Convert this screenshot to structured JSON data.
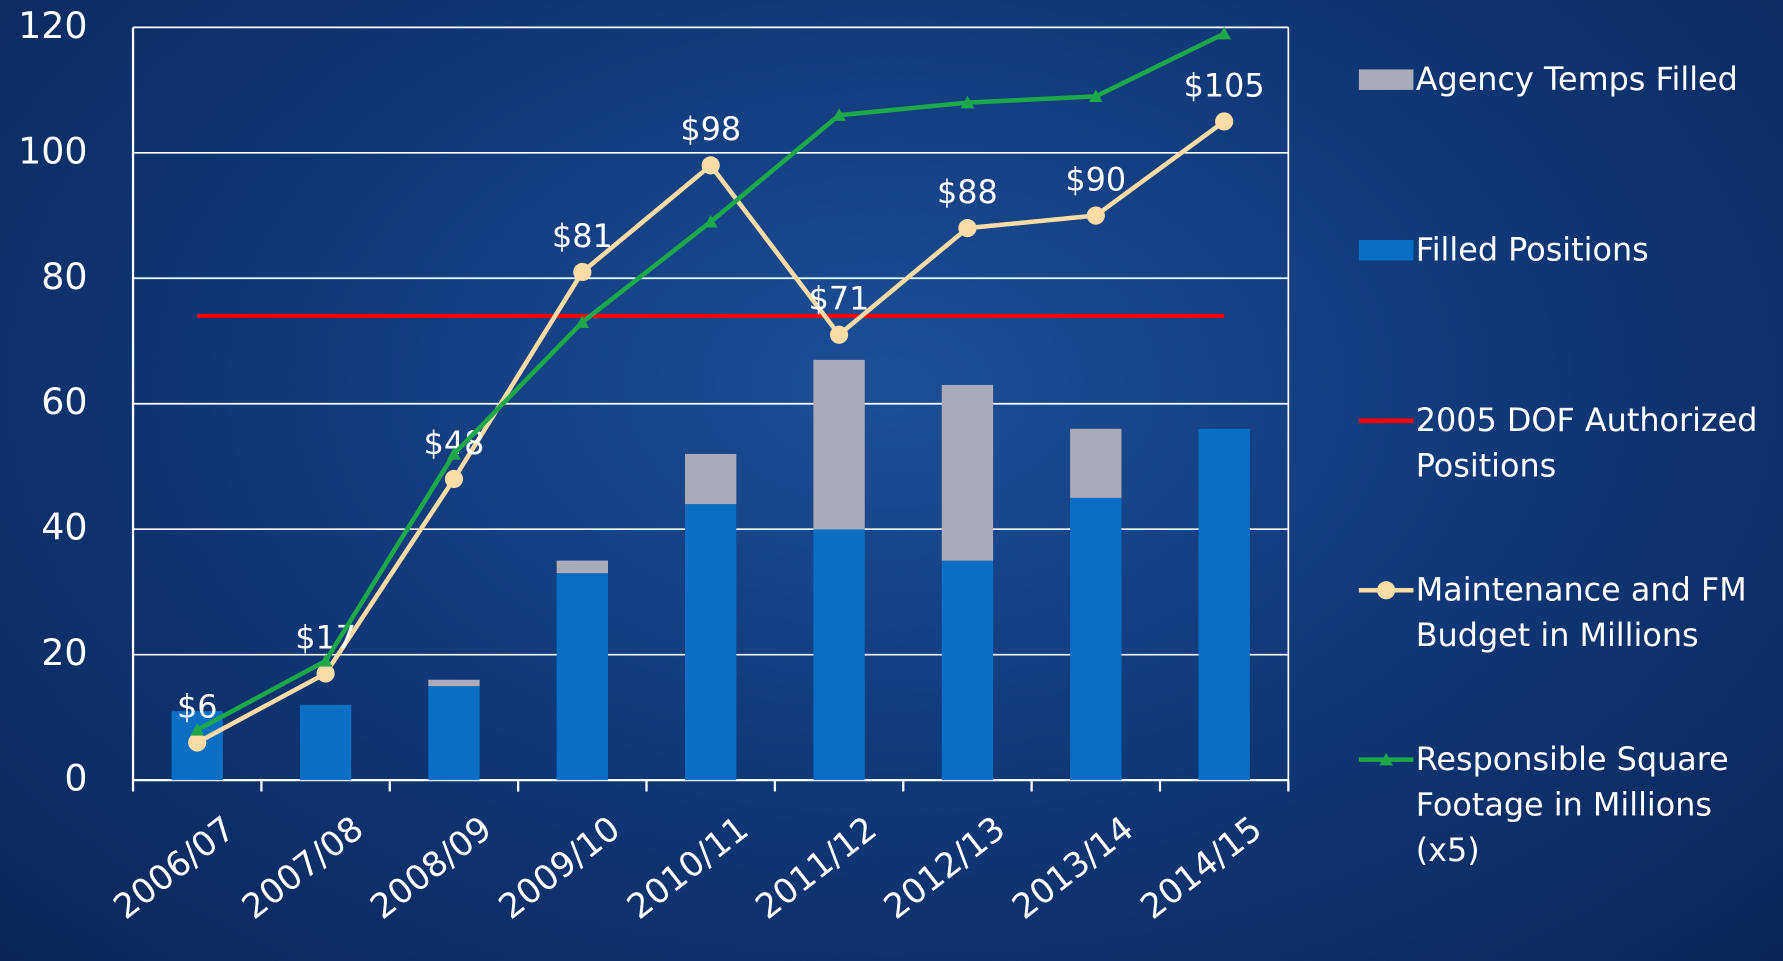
{
  "chart_data": {
    "type": "bar",
    "categories": [
      "2006/07",
      "2007/08",
      "2008/09",
      "2009/10",
      "2010/11",
      "2011/12",
      "2012/13",
      "2013/14",
      "2014/15"
    ],
    "ylim": [
      0,
      120
    ],
    "yticks": [
      0,
      20,
      40,
      60,
      80,
      100,
      120
    ],
    "grid": true,
    "legend": "right",
    "series": [
      {
        "name": "Agency Temps Filled",
        "type": "bar",
        "stack": "top",
        "color": "#a9abb8",
        "values": [
          0,
          0,
          1,
          2,
          8,
          27,
          28,
          11,
          0
        ]
      },
      {
        "name": "Filled Positions",
        "type": "bar",
        "stack": "bottom",
        "color": "#0a6fc2",
        "values": [
          11,
          12,
          15,
          33,
          44,
          40,
          35,
          45,
          56
        ]
      },
      {
        "name": "2005 DOF Authorized Positions",
        "type": "line",
        "color": "#ff0000",
        "values": [
          74,
          74,
          74,
          74,
          74,
          74,
          74,
          74,
          74
        ]
      },
      {
        "name": "Maintenance and FM Budget in Millions",
        "type": "line",
        "marker": "circle",
        "color": "#fcdca6",
        "values": [
          6,
          17,
          48,
          81,
          98,
          71,
          88,
          90,
          105
        ],
        "value_labels": [
          "$6",
          "$17",
          "$48",
          "$81",
          "$98",
          "$71",
          "$88",
          "$90",
          "$105"
        ]
      },
      {
        "name": "Responsible Square Footage in Millions (x5)",
        "type": "line",
        "marker": "triangle",
        "color": "#1fa84a",
        "values": [
          8,
          19,
          52,
          73,
          89,
          106,
          108,
          109,
          119
        ]
      }
    ]
  }
}
